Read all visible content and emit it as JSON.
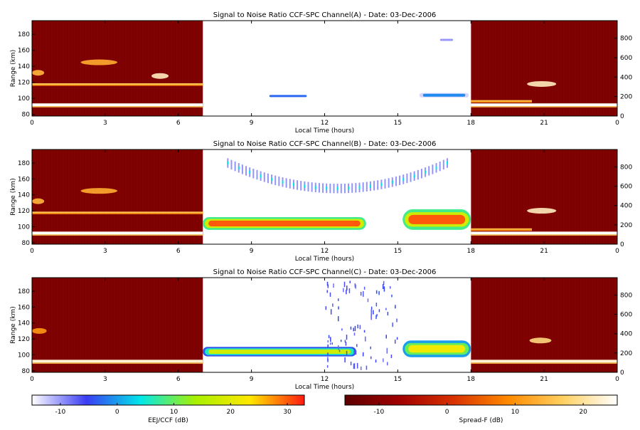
{
  "chart_data": [
    {
      "type": "heatmap",
      "title": "Signal to Noise Ratio CCF-SPC Channel(A) - Date: 03-Dec-2006",
      "xlabel": "Local Time (hours)",
      "ylabel": "Range (km)",
      "xlim": [
        0,
        24
      ],
      "ylim": [
        78,
        197
      ],
      "ylim_right": [
        0,
        980
      ],
      "x_ticks": [
        "0",
        "3",
        "6",
        "9",
        "12",
        "15",
        "18",
        "21",
        "0"
      ],
      "y_ticks": [
        "80",
        "100",
        "120",
        "140",
        "160",
        "180"
      ],
      "y_ticks_right": [
        "0",
        "200",
        "400",
        "600",
        "800"
      ],
      "day_window": [
        7,
        18
      ],
      "night_features": [
        {
          "kind": "layer",
          "t_start": 0,
          "t_end": 7,
          "range": 92,
          "intensity": 1.0
        },
        {
          "kind": "layer",
          "t_start": 0,
          "t_end": 7,
          "range": 118,
          "intensity": 0.6
        },
        {
          "kind": "patch",
          "t_start": 0,
          "t_end": 0.5,
          "range": 132,
          "intensity": 0.5
        },
        {
          "kind": "patch",
          "t_start": 4.9,
          "t_end": 5.6,
          "range": 128,
          "intensity": 0.85
        },
        {
          "kind": "patch",
          "t_start": 2.0,
          "t_end": 3.5,
          "range": 145,
          "intensity": 0.45
        },
        {
          "kind": "layer",
          "t_start": 18,
          "t_end": 24,
          "range": 92,
          "intensity": 1.0
        },
        {
          "kind": "layer",
          "t_start": 18,
          "t_end": 20.5,
          "range": 97,
          "intensity": 0.55
        },
        {
          "kind": "patch",
          "t_start": 20.3,
          "t_end": 21.5,
          "range": 118,
          "intensity": 0.85
        }
      ],
      "day_features": [
        {
          "kind": "blob",
          "t_start": 9.5,
          "t_end": 11.5,
          "range_lo": 100,
          "range_hi": 106,
          "snr": -3
        },
        {
          "kind": "blob",
          "t_start": 15.8,
          "t_end": 18,
          "range_lo": 100,
          "range_hi": 108,
          "snr": -1
        },
        {
          "kind": "blob",
          "t_start": 16.5,
          "t_end": 17.5,
          "range_lo": 170,
          "range_hi": 176,
          "snr": -10
        }
      ]
    },
    {
      "type": "heatmap",
      "title": "Signal to Noise Ratio CCF-SPC Channel(B) - Date: 03-Dec-2006",
      "xlabel": "Local Time (hours)",
      "ylabel": "Range (km)",
      "xlim": [
        0,
        24
      ],
      "ylim": [
        78,
        197
      ],
      "ylim_right": [
        0,
        980
      ],
      "x_ticks": [
        "0",
        "3",
        "6",
        "9",
        "12",
        "15",
        "18",
        "21",
        "0"
      ],
      "y_ticks": [
        "80",
        "100",
        "120",
        "140",
        "160",
        "180"
      ],
      "y_ticks_right": [
        "0",
        "200",
        "400",
        "600",
        "800"
      ],
      "day_window": [
        7,
        18
      ],
      "night_features": [
        {
          "kind": "layer",
          "t_start": 0,
          "t_end": 7,
          "range": 92,
          "intensity": 1.0
        },
        {
          "kind": "layer",
          "t_start": 0,
          "t_end": 7,
          "range": 118,
          "intensity": 0.6
        },
        {
          "kind": "patch",
          "t_start": 0,
          "t_end": 0.5,
          "range": 132,
          "intensity": 0.5
        },
        {
          "kind": "patch",
          "t_start": 2.0,
          "t_end": 3.5,
          "range": 145,
          "intensity": 0.45
        },
        {
          "kind": "layer",
          "t_start": 18,
          "t_end": 24,
          "range": 92,
          "intensity": 1.0
        },
        {
          "kind": "layer",
          "t_start": 18,
          "t_end": 20.5,
          "range": 97,
          "intensity": 0.55
        },
        {
          "kind": "patch",
          "t_start": 20.3,
          "t_end": 21.5,
          "range": 120,
          "intensity": 0.85
        }
      ],
      "day_features": [
        {
          "kind": "band",
          "t_start": 7,
          "t_end": 13.7,
          "range_lo": 96,
          "range_hi": 112,
          "snr": 30
        },
        {
          "kind": "band",
          "t_start": 15.2,
          "t_end": 18,
          "range_lo": 96,
          "range_hi": 122,
          "snr": 30
        },
        {
          "kind": "arc",
          "t_start": 8,
          "t_end": 17,
          "range_min": 148,
          "range_max": 180,
          "snr": -2
        }
      ]
    },
    {
      "type": "heatmap",
      "title": "Signal to Noise Ratio CCF-SPC Channel(C) - Date: 03-Dec-2006",
      "xlabel": "Local Time (hours)",
      "ylabel": "Range (km)",
      "xlim": [
        0,
        24
      ],
      "ylim": [
        78,
        197
      ],
      "ylim_right": [
        0,
        980
      ],
      "x_ticks": [
        "0",
        "3",
        "6",
        "9",
        "12",
        "15",
        "18",
        "21",
        "0"
      ],
      "y_ticks": [
        "80",
        "100",
        "120",
        "140",
        "160",
        "180"
      ],
      "y_ticks_right": [
        "0",
        "200",
        "400",
        "600",
        "800"
      ],
      "day_window": [
        7,
        18
      ],
      "night_features": [
        {
          "kind": "layer",
          "t_start": 0,
          "t_end": 7,
          "range": 92,
          "intensity": 0.9
        },
        {
          "kind": "patch",
          "t_start": 0,
          "t_end": 0.6,
          "range": 130,
          "intensity": 0.35
        },
        {
          "kind": "layer",
          "t_start": 18,
          "t_end": 24,
          "range": 92,
          "intensity": 0.9
        },
        {
          "kind": "patch",
          "t_start": 20.4,
          "t_end": 21.3,
          "range": 118,
          "intensity": 0.7
        }
      ],
      "day_features": [
        {
          "kind": "band",
          "t_start": 7,
          "t_end": 13.3,
          "range_lo": 98,
          "range_hi": 110,
          "snr": 18
        },
        {
          "kind": "band",
          "t_start": 15.2,
          "t_end": 18,
          "range_lo": 97,
          "range_hi": 118,
          "snr": 22
        },
        {
          "kind": "scatter",
          "t_start": 12,
          "t_end": 15,
          "range_lo": 85,
          "range_hi": 195,
          "snr": -8
        }
      ]
    }
  ],
  "colorbars": [
    {
      "label": "EEJ/CCF (dB)",
      "range": [
        -15,
        33
      ],
      "ticks": [
        "-10",
        "0",
        "10",
        "20",
        "30"
      ],
      "tick_values": [
        -10,
        0,
        10,
        20,
        30
      ],
      "colors": [
        "#ffffff",
        "#3a3cf4",
        "#00e8e8",
        "#a8f000",
        "#ffe800",
        "#ff1a10"
      ]
    },
    {
      "label": "Spread-F (dB)",
      "range": [
        -15,
        25
      ],
      "ticks": [
        "-10",
        "0",
        "10",
        "20"
      ],
      "tick_values": [
        -10,
        0,
        10,
        20
      ],
      "colors": [
        "#5c0000",
        "#a00000",
        "#d83200",
        "#ff8a00",
        "#ffd060",
        "#ffffff"
      ]
    }
  ]
}
